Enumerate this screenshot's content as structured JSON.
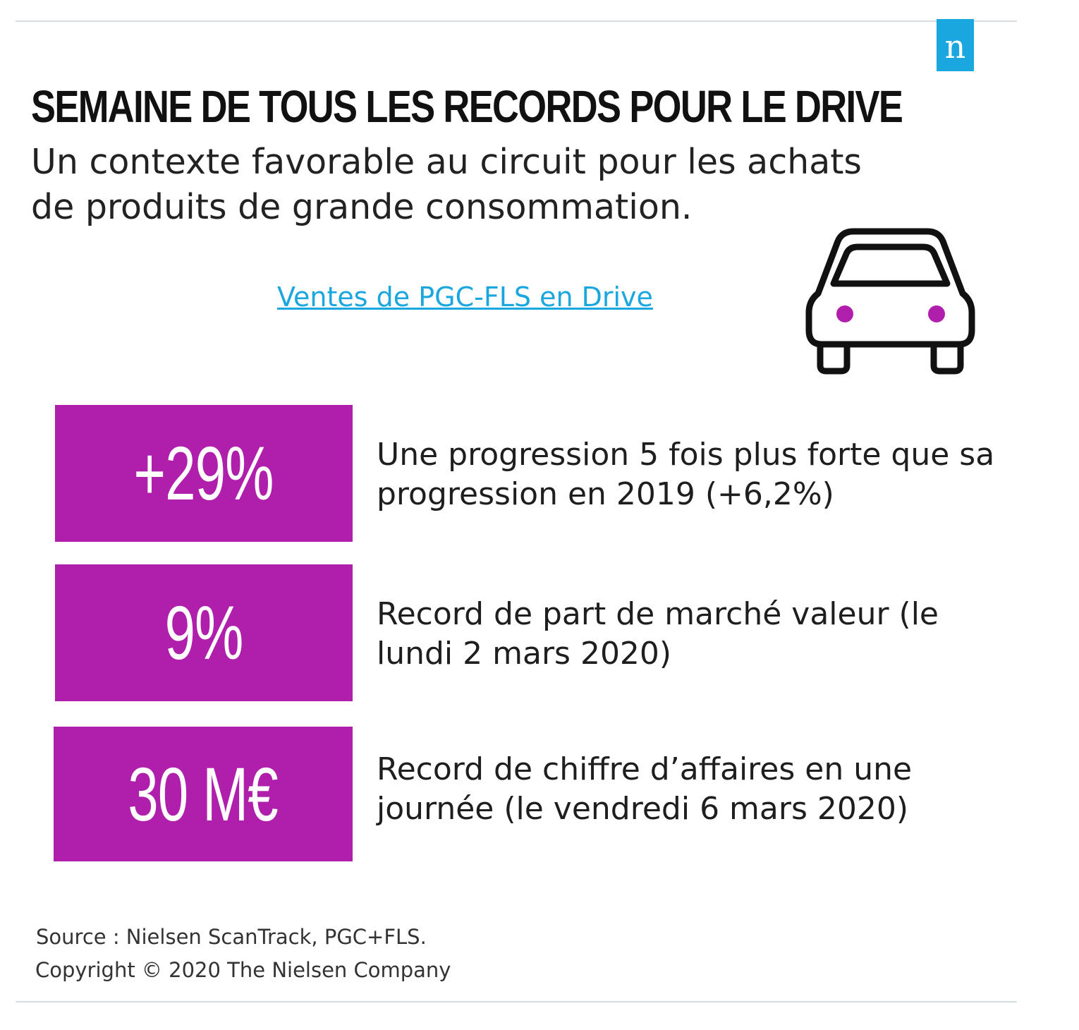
{
  "brand": {
    "logo_letter": "n",
    "logo_color": "#1aa7df",
    "accent_color": "#b01fab"
  },
  "header": {
    "title": "SEMAINE DE TOUS LES RECORDS POUR LE DRIVE",
    "subtitle": "Un contexte favorable au circuit pour les achats de produits de grande consommation."
  },
  "link": {
    "label": "Ventes de PGC-FLS en Drive"
  },
  "illustration": {
    "icon": "car-icon",
    "headlight_color": "#b01fab"
  },
  "stats": [
    {
      "value": "+29%",
      "description": "Une progression 5 fois plus forte que sa progression en 2019 (+6,2%)"
    },
    {
      "value": "9%",
      "description": "Record de part de marché valeur (le lundi 2 mars 2020)"
    },
    {
      "value": "30 M€",
      "description": "Record de chiffre d’affaires en une journée (le vendredi 6 mars 2020)"
    }
  ],
  "footer": {
    "source": "Source : Nielsen ScanTrack, PGC+FLS.",
    "copyright": "Copyright © 2020 The Nielsen Company"
  }
}
